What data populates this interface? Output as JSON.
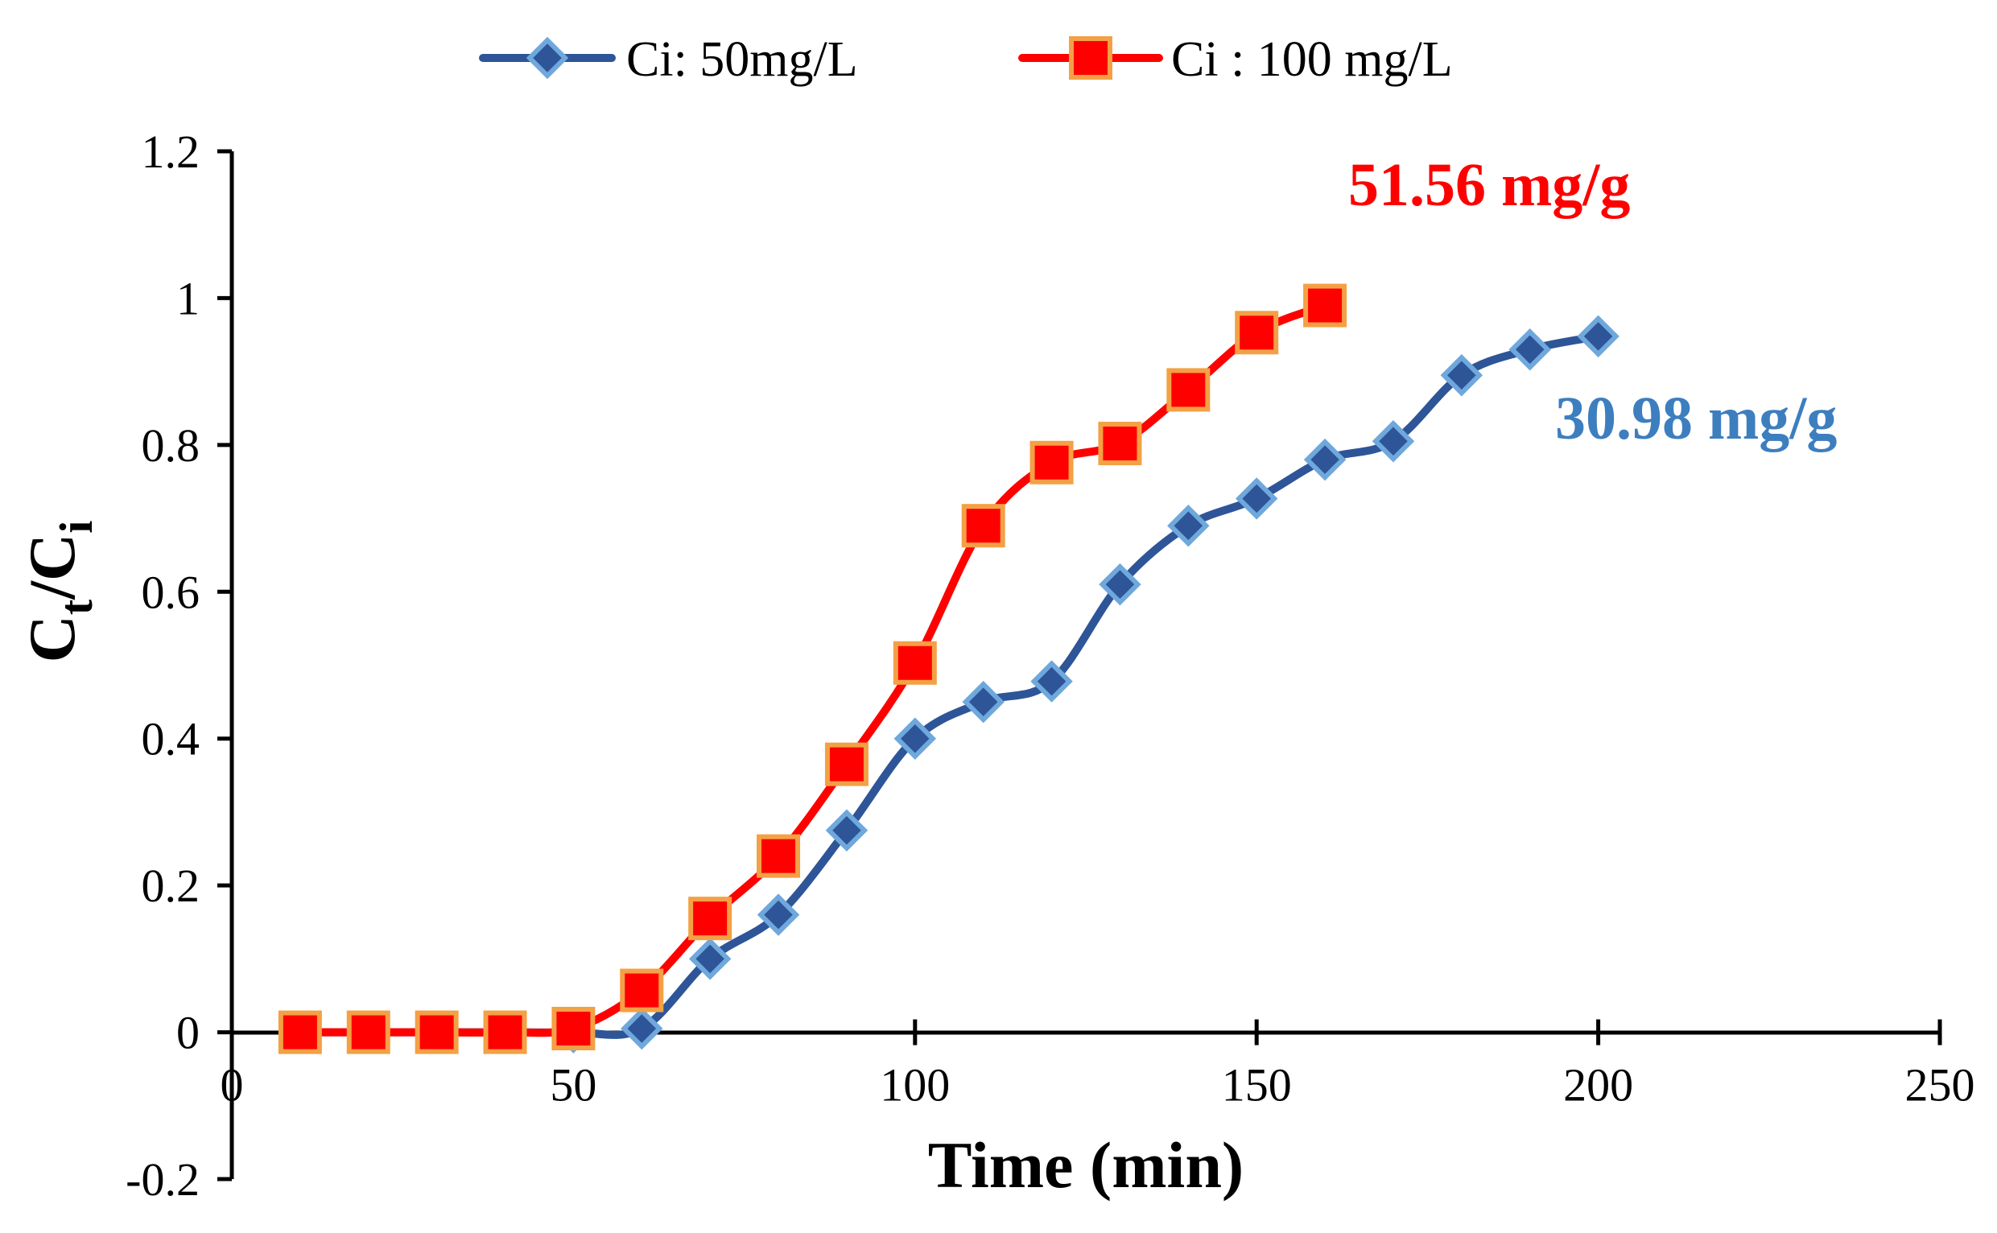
{
  "chart_data": {
    "type": "line",
    "title": "",
    "xlabel": "Time (min)",
    "ylabel_main": "C",
    "ylabel_sub1": "t",
    "ylabel_sep": "/C",
    "ylabel_sub2": "i",
    "xlim": [
      0,
      250
    ],
    "ylim": [
      -0.2,
      1.2
    ],
    "xticks": [
      0,
      50,
      100,
      150,
      200,
      250
    ],
    "yticks": [
      -0.2,
      0,
      0.2,
      0.4,
      0.6,
      0.8,
      1,
      1.2
    ],
    "xtick_labels": [
      "0",
      "50",
      "100",
      "150",
      "200",
      "250"
    ],
    "ytick_labels": [
      "-0.2",
      "0",
      "0.2",
      "0.4",
      "0.6",
      "0.8",
      "1",
      "1.2"
    ],
    "grid": false,
    "legend_position": "top",
    "series": [
      {
        "name": "Ci: 50mg/L",
        "marker": "diamond",
        "line_color": "#2E5597",
        "marker_fill": "#2E5597",
        "marker_edge": "#6FA8DC",
        "x": [
          10,
          20,
          30,
          40,
          50,
          60,
          70,
          80,
          90,
          100,
          110,
          120,
          130,
          140,
          150,
          160,
          170,
          180,
          190,
          200
        ],
        "y": [
          0,
          0,
          0,
          0,
          0,
          0.005,
          0.1,
          0.16,
          0.275,
          0.4,
          0.45,
          0.478,
          0.61,
          0.69,
          0.727,
          0.78,
          0.805,
          0.895,
          0.93,
          0.948
        ]
      },
      {
        "name": "Ci : 100 mg/L",
        "marker": "square",
        "line_color": "#FF0000",
        "marker_fill": "#FF0000",
        "marker_edge": "#F4A045",
        "x": [
          10,
          20,
          30,
          40,
          50,
          60,
          70,
          80,
          90,
          100,
          110,
          120,
          130,
          140,
          150,
          160
        ],
        "y": [
          0,
          0,
          0,
          0,
          0.005,
          0.057,
          0.155,
          0.24,
          0.365,
          0.503,
          0.69,
          0.776,
          0.802,
          0.875,
          0.953,
          0.99
        ]
      }
    ],
    "annotations": [
      {
        "text": "51.56 mg/g",
        "color": "#FF0000",
        "series": 1
      },
      {
        "text": "30.98 mg/g",
        "color": "#3D7EBF",
        "series": 0
      }
    ]
  }
}
